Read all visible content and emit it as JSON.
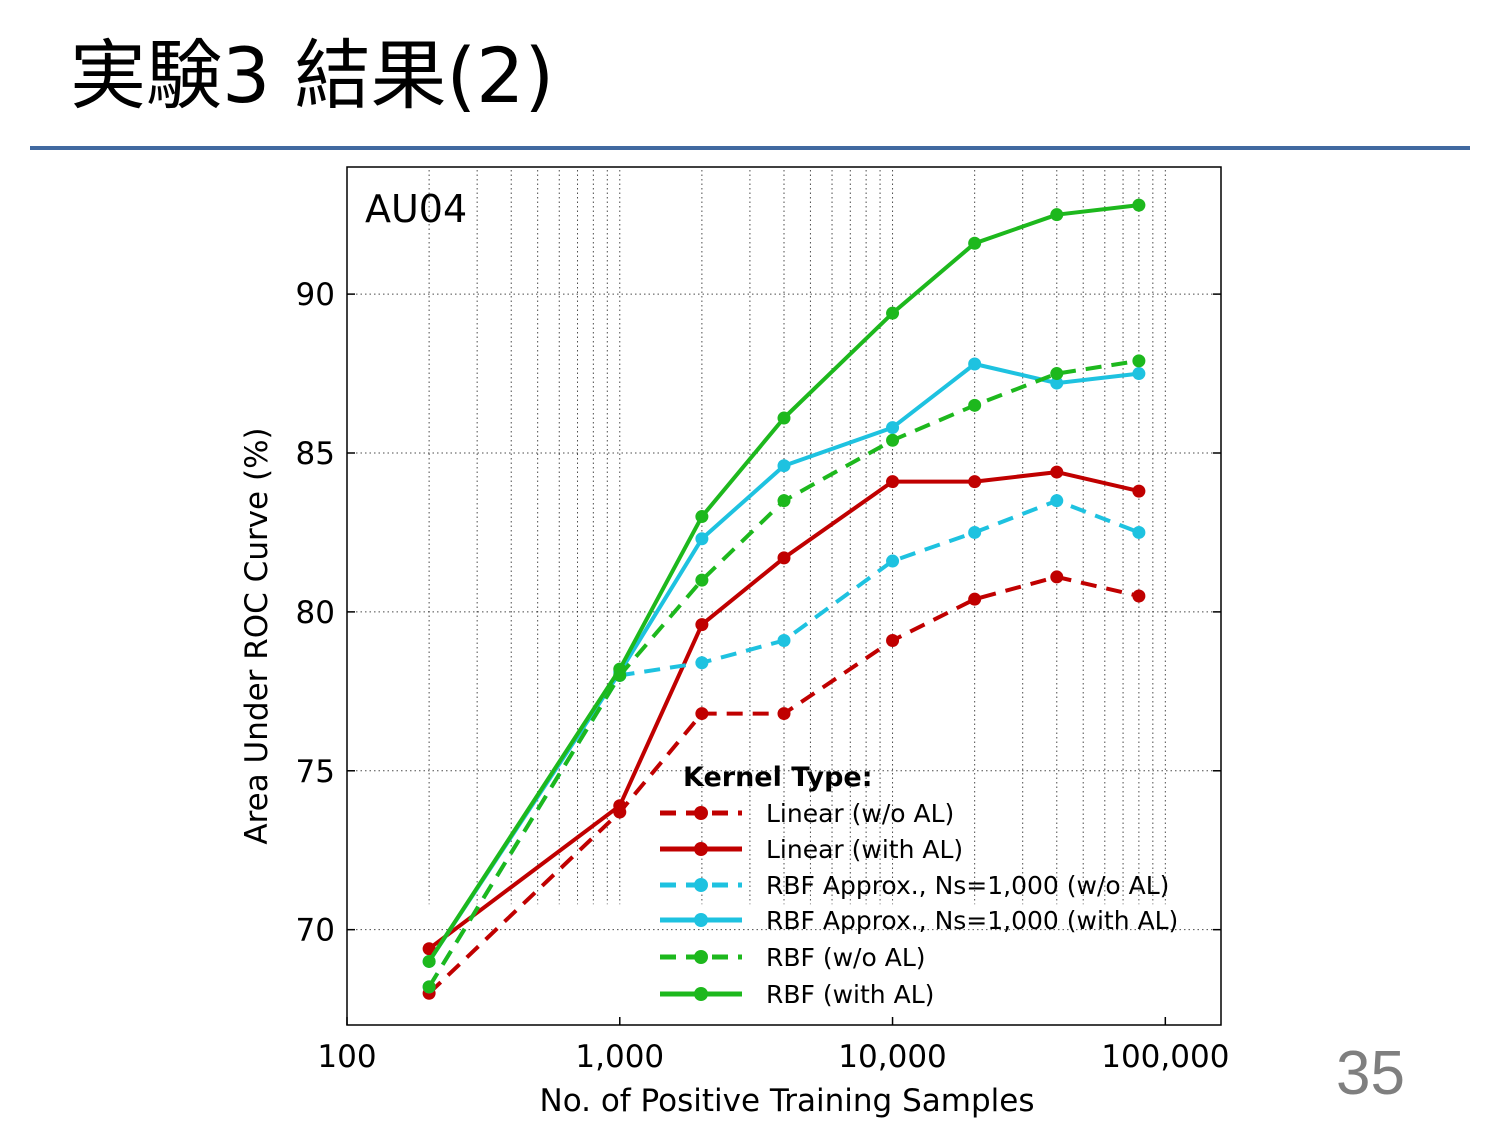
{
  "slide": {
    "title": "実験3 結果(2)",
    "page_number": "35"
  },
  "colors": {
    "title_rule": "#4169a0",
    "linear": "#c00000",
    "rbf_approx": "#1ec2e0",
    "rbf": "#1db81d",
    "page_number": "#7f7f7f"
  },
  "chart_data": {
    "type": "line",
    "panel_label": "AU04",
    "xlabel": "No. of Positive Training Samples",
    "ylabel": "Area Under ROC Curve (%)",
    "xscale": "log",
    "xlim": [
      100,
      160000
    ],
    "ylim": [
      67,
      94
    ],
    "x_ticks": [
      {
        "value": 100,
        "label": "100"
      },
      {
        "value": 1000,
        "label": "1,000"
      },
      {
        "value": 10000,
        "label": "10,000"
      },
      {
        "value": 100000,
        "label": "100,000"
      }
    ],
    "y_ticks": [
      {
        "value": 70,
        "label": "70"
      },
      {
        "value": 75,
        "label": "75"
      },
      {
        "value": 80,
        "label": "80"
      },
      {
        "value": 85,
        "label": "85"
      },
      {
        "value": 90,
        "label": "90"
      }
    ],
    "grid": true,
    "legend": {
      "title": "Kernel Type:",
      "position": "lower-right"
    },
    "series": [
      {
        "name": "Linear (w/o AL)",
        "color": "#c00000",
        "style": "dashed",
        "x": [
          200,
          1000,
          2000,
          4000,
          10000,
          20000,
          40000,
          80000
        ],
        "y": [
          68.0,
          73.7,
          76.8,
          76.8,
          79.1,
          80.4,
          81.1,
          80.5
        ]
      },
      {
        "name": "Linear (with AL)",
        "color": "#c00000",
        "style": "solid",
        "x": [
          200,
          1000,
          2000,
          4000,
          10000,
          20000,
          40000,
          80000
        ],
        "y": [
          69.4,
          73.9,
          79.6,
          81.7,
          84.1,
          84.1,
          84.4,
          83.8
        ]
      },
      {
        "name": "RBF Approx., Ns=1,000 (w/o AL)",
        "color": "#1ec2e0",
        "style": "dashed",
        "x": [
          200,
          1000,
          2000,
          4000,
          10000,
          20000,
          40000,
          80000
        ],
        "y": [
          68.2,
          78.0,
          78.4,
          79.1,
          81.6,
          82.5,
          83.5,
          82.5
        ]
      },
      {
        "name": "RBF Approx., Ns=1,000 (with AL)",
        "color": "#1ec2e0",
        "style": "solid",
        "x": [
          200,
          1000,
          2000,
          4000,
          10000,
          20000,
          40000,
          80000
        ],
        "y": [
          69.0,
          78.1,
          82.3,
          84.6,
          85.8,
          87.8,
          87.2,
          87.5
        ]
      },
      {
        "name": "RBF (w/o AL)",
        "color": "#1db81d",
        "style": "dashed",
        "x": [
          200,
          1000,
          2000,
          4000,
          10000,
          20000,
          40000,
          80000
        ],
        "y": [
          68.2,
          78.0,
          81.0,
          83.5,
          85.4,
          86.5,
          87.5,
          87.9
        ]
      },
      {
        "name": "RBF (with AL)",
        "color": "#1db81d",
        "style": "solid",
        "x": [
          200,
          1000,
          2000,
          4000,
          10000,
          20000,
          40000,
          80000
        ],
        "y": [
          69.0,
          78.2,
          83.0,
          86.1,
          89.4,
          91.6,
          92.5,
          92.8
        ]
      }
    ]
  }
}
